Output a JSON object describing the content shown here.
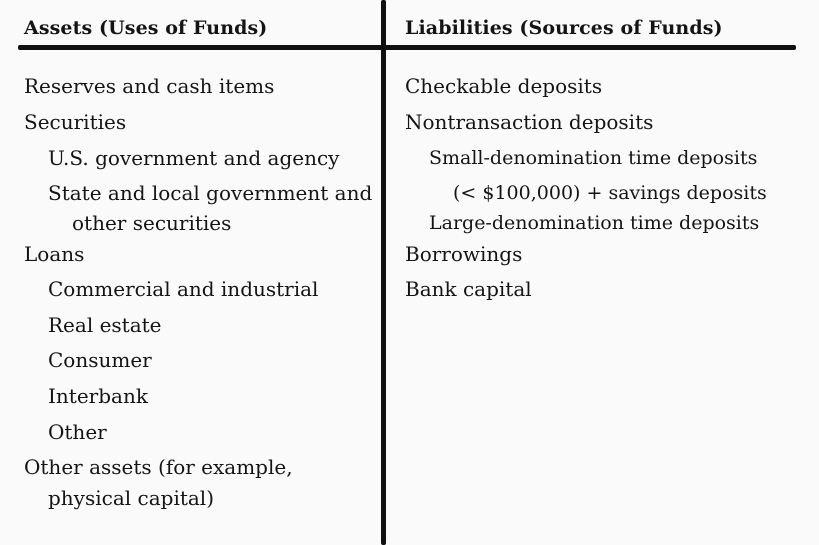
{
  "table": {
    "assets_header": "Assets (Uses of Funds)",
    "liabilities_header": "Liabilities (Sources of Funds)",
    "assets": [
      "Reserves and cash items",
      "Securities",
      "U.S. government and agency",
      "State and local government and",
      "other securities",
      "Loans",
      "Commercial and industrial",
      "Real estate",
      "Consumer",
      "Interbank",
      "Other",
      "Other assets (for example,",
      "physical capital)"
    ],
    "liabilities": [
      "Checkable deposits",
      "Nontransaction deposits",
      "Small-denomination time deposits",
      "(< $100,000) + savings deposits",
      "Large-denomination time deposits",
      "Borrowings",
      "Bank capital"
    ]
  }
}
